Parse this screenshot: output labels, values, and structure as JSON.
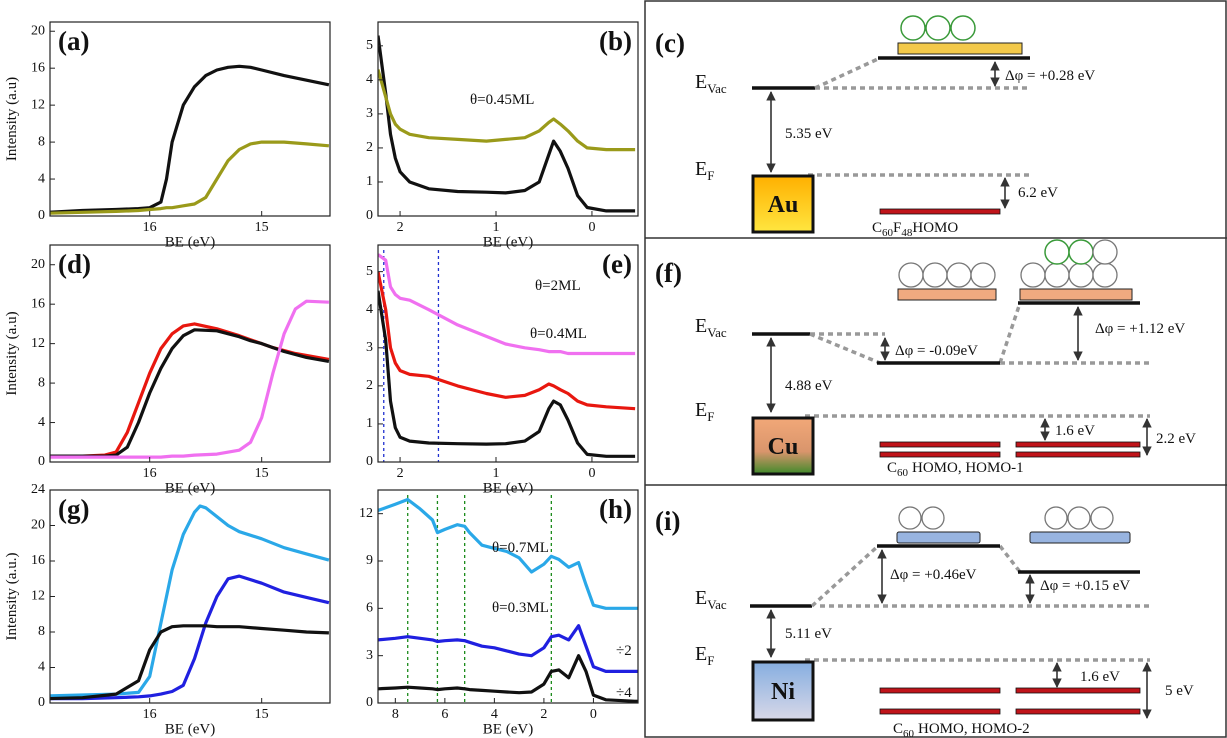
{
  "chart_data": [
    {
      "type": "line",
      "panel": "(a)",
      "xlabel": "BE (eV)",
      "ylabel": "Intensity (a.u)",
      "x": [
        16.9,
        16.6,
        16.3,
        16.1,
        16.0,
        15.9,
        15.85,
        15.8,
        15.7,
        15.6,
        15.5,
        15.4,
        15.3,
        15.2,
        15.1,
        15.0,
        14.8,
        14.6,
        14.4
      ],
      "xlim": [
        16.89,
        14.39
      ],
      "xticks": [
        16,
        15
      ],
      "ylim": [
        0,
        21
      ],
      "yticks": [
        0,
        4,
        8,
        12,
        16,
        20
      ],
      "series": [
        {
          "color": "#111111",
          "values": [
            0.4,
            0.6,
            0.7,
            0.8,
            0.9,
            1.5,
            4,
            8,
            12,
            14,
            15.2,
            15.8,
            16.1,
            16.2,
            16.1,
            15.8,
            15.2,
            14.7,
            14.2
          ]
        },
        {
          "color": "#9a9a1a",
          "values": [
            0.3,
            0.4,
            0.5,
            0.6,
            0.7,
            0.8,
            0.9,
            0.9,
            1.1,
            1.3,
            2,
            4,
            6,
            7.2,
            7.8,
            8,
            8,
            7.8,
            7.6
          ]
        }
      ],
      "annotations": []
    },
    {
      "type": "line",
      "panel": "(b)",
      "xlabel": "BE (eV)",
      "x": [
        2.23,
        2.15,
        2.1,
        2.05,
        2.0,
        1.9,
        1.7,
        1.4,
        1.1,
        0.9,
        0.7,
        0.55,
        0.45,
        0.4,
        0.33,
        0.25,
        0.15,
        0.05,
        -0.15,
        -0.45
      ],
      "xlim": [
        2.23,
        -0.48
      ],
      "xticks": [
        2,
        1,
        0
      ],
      "ylim": [
        0,
        5.7
      ],
      "yticks": [
        0,
        1,
        2,
        3,
        4,
        5
      ],
      "series": [
        {
          "color": "#111111",
          "values": [
            5.3,
            3.6,
            2.4,
            1.7,
            1.3,
            1.0,
            0.8,
            0.72,
            0.7,
            0.68,
            0.75,
            1.0,
            1.8,
            2.2,
            1.9,
            1.4,
            0.6,
            0.25,
            0.15,
            0.15
          ]
        },
        {
          "color": "#9a9a1a",
          "values": [
            4.3,
            3.5,
            3.0,
            2.7,
            2.55,
            2.4,
            2.3,
            2.25,
            2.2,
            2.25,
            2.3,
            2.5,
            2.75,
            2.85,
            2.7,
            2.5,
            2.2,
            2.0,
            1.95,
            1.95
          ]
        }
      ],
      "annotations": [
        "θ=0.45ML"
      ]
    },
    {
      "type": "line",
      "panel": "(d)",
      "xlabel": "BE (eV)",
      "ylabel": "Intensity (a.u)",
      "x": [
        16.9,
        16.6,
        16.4,
        16.3,
        16.2,
        16.1,
        16.0,
        15.9,
        15.8,
        15.7,
        15.6,
        15.4,
        15.2,
        15.1,
        15.0,
        14.9,
        14.8,
        14.7,
        14.6,
        14.4
      ],
      "xlim": [
        16.89,
        14.39
      ],
      "xticks": [
        16,
        15
      ],
      "ylim": [
        0,
        22
      ],
      "yticks": [
        0,
        4,
        8,
        12,
        16,
        20
      ],
      "series": [
        {
          "color": "#e8170f",
          "values": [
            0.6,
            0.6,
            0.7,
            1,
            3,
            6,
            9,
            11.5,
            13,
            13.8,
            14,
            13.5,
            12.8,
            12.4,
            12,
            11.6,
            11.3,
            11,
            10.8,
            10.4
          ]
        },
        {
          "color": "#111111",
          "values": [
            0.6,
            0.6,
            0.6,
            0.7,
            1.5,
            4,
            7,
            9.5,
            11.5,
            12.8,
            13.4,
            13.3,
            12.7,
            12.3,
            12,
            11.6,
            11.2,
            10.9,
            10.6,
            10.2
          ]
        },
        {
          "color": "#f070f0",
          "values": [
            0.5,
            0.5,
            0.5,
            0.5,
            0.5,
            0.5,
            0.5,
            0.5,
            0.6,
            0.6,
            0.7,
            0.8,
            1.2,
            2,
            4.5,
            9,
            13,
            15.5,
            16.3,
            16.2
          ]
        }
      ],
      "annotations": []
    },
    {
      "type": "line",
      "panel": "(e)",
      "xlabel": "BE (eV)",
      "x": [
        2.23,
        2.15,
        2.1,
        2.05,
        2.0,
        1.9,
        1.7,
        1.4,
        1.1,
        0.9,
        0.7,
        0.55,
        0.45,
        0.4,
        0.33,
        0.25,
        0.15,
        0.05,
        -0.15,
        -0.45
      ],
      "xlim": [
        2.23,
        -0.48
      ],
      "xticks": [
        2,
        1,
        0
      ],
      "ylim": [
        0,
        5.7
      ],
      "yticks": [
        0,
        1,
        2,
        3,
        4,
        5
      ],
      "vlines": [
        2.17,
        1.6
      ],
      "vline_color": "#2030d0",
      "series": [
        {
          "color": "#111111",
          "values": [
            4.5,
            3.2,
            1.6,
            0.9,
            0.65,
            0.55,
            0.5,
            0.48,
            0.47,
            0.48,
            0.55,
            0.8,
            1.4,
            1.6,
            1.5,
            1.1,
            0.5,
            0.2,
            0.15,
            0.15
          ]
        },
        {
          "color": "#e8170f",
          "values": [
            5.0,
            4.0,
            3.0,
            2.6,
            2.4,
            2.3,
            2.25,
            2.0,
            1.8,
            1.7,
            1.75,
            1.9,
            2.05,
            2.0,
            1.9,
            1.8,
            1.6,
            1.5,
            1.45,
            1.4
          ]
        },
        {
          "color": "#f070f0",
          "values": [
            5.45,
            5.3,
            4.6,
            4.4,
            4.3,
            4.25,
            4.0,
            3.6,
            3.3,
            3.1,
            3.0,
            2.95,
            2.9,
            2.9,
            2.9,
            2.85,
            2.85,
            2.85,
            2.85,
            2.85
          ]
        }
      ],
      "annotations": [
        "θ=2ML",
        "θ=0.4ML"
      ]
    },
    {
      "type": "line",
      "panel": "(g)",
      "xlabel": "BE (eV)",
      "ylabel": "Intensity (a.u.)",
      "x": [
        16.9,
        16.6,
        16.3,
        16.1,
        16.0,
        15.9,
        15.8,
        15.7,
        15.6,
        15.55,
        15.5,
        15.4,
        15.3,
        15.2,
        15.0,
        14.8,
        14.6,
        14.4
      ],
      "xlim": [
        16.89,
        14.39
      ],
      "xticks": [
        16,
        15
      ],
      "ylim": [
        0,
        24
      ],
      "yticks": [
        0,
        4,
        8,
        12,
        16,
        20,
        24
      ],
      "series": [
        {
          "color": "#2aa8e8",
          "values": [
            0.8,
            0.9,
            1.0,
            1.2,
            3,
            9,
            15,
            19,
            21.5,
            22.2,
            22,
            21,
            20,
            19.3,
            18.5,
            17.5,
            16.8,
            16.1
          ]
        },
        {
          "color": "#2020e0",
          "values": [
            0.5,
            0.5,
            0.6,
            0.7,
            0.8,
            1,
            1.3,
            2,
            5,
            7,
            9,
            12,
            14,
            14.3,
            13.5,
            12.5,
            11.9,
            11.3
          ]
        },
        {
          "color": "#111111",
          "values": [
            0.5,
            0.6,
            1,
            2.5,
            6,
            8,
            8.6,
            8.7,
            8.7,
            8.7,
            8.7,
            8.6,
            8.6,
            8.6,
            8.4,
            8.2,
            8.0,
            7.9
          ]
        }
      ],
      "annotations": []
    },
    {
      "type": "line",
      "panel": "(h)",
      "xlabel": "BE (eV)",
      "x": [
        8.7,
        8,
        7.5,
        7,
        6.5,
        6.3,
        6,
        5.5,
        5.2,
        5,
        4.5,
        4,
        3.5,
        3,
        2.5,
        2,
        1.7,
        1.4,
        1,
        0.6,
        0.3,
        0,
        -0.5,
        -1.8
      ],
      "xlim": [
        8.7,
        -1.8
      ],
      "xticks": [
        8,
        6,
        4,
        2,
        0
      ],
      "ylim": [
        0,
        13.5
      ],
      "yticks": [
        0,
        3,
        6,
        9,
        12
      ],
      "vlines": [
        7.5,
        6.3,
        5.2,
        1.7
      ],
      "vline_color": "#1a8a1a",
      "series": [
        {
          "color": "#2aa8e8",
          "values": [
            12.2,
            12.6,
            12.9,
            12.3,
            11.6,
            10.8,
            11.0,
            11.3,
            11.2,
            10.8,
            10.0,
            9.8,
            9.6,
            9.2,
            8.3,
            8.8,
            9.3,
            9.1,
            8.6,
            8.9,
            7.5,
            6.2,
            6.0,
            6.0
          ]
        },
        {
          "color": "#2020e0",
          "values": [
            4.0,
            4.1,
            4.2,
            4.1,
            4.0,
            3.9,
            3.95,
            4.0,
            3.95,
            3.85,
            3.6,
            3.5,
            3.3,
            3.1,
            3.0,
            3.5,
            4.2,
            4.3,
            4.0,
            4.9,
            3.6,
            2.3,
            2.0,
            2.0
          ]
        },
        {
          "color": "#111111",
          "values": [
            0.9,
            0.95,
            1.0,
            0.95,
            0.9,
            0.85,
            0.9,
            0.95,
            0.9,
            0.85,
            0.8,
            0.75,
            0.7,
            0.65,
            0.7,
            1.2,
            2.0,
            2.1,
            1.6,
            3.0,
            2.0,
            0.5,
            0.2,
            0.1
          ]
        }
      ],
      "annotations": [
        "θ=0.7ML",
        "θ=0.3ML",
        "÷2",
        "÷4"
      ]
    }
  ],
  "diagrams": [
    {
      "panel": "(c)",
      "evac": {
        "main": "E",
        "sub": "Vac"
      },
      "ef": {
        "main": "E",
        "sub": "F"
      },
      "metal": "Au",
      "work_function": "5.35 eV",
      "shift_labels": [
        "Δφ = +0.28 eV"
      ],
      "gap_labels": [
        "6.2 eV"
      ],
      "homo_label": [
        "C",
        "60",
        "F",
        "48",
        "HOMO"
      ]
    },
    {
      "panel": "(f)",
      "evac": {
        "main": "E",
        "sub": "Vac"
      },
      "ef": {
        "main": "E",
        "sub": "F"
      },
      "metal": "Cu",
      "work_function": "4.88 eV",
      "shift_labels": [
        "Δφ = -0.09eV",
        "Δφ = +1.12 eV"
      ],
      "gap_labels": [
        "1.6 eV",
        "2.2 eV"
      ],
      "homo_label": [
        "C",
        "60",
        "HOMO, HOMO-1"
      ]
    },
    {
      "panel": "(i)",
      "evac": {
        "main": "E",
        "sub": "Vac"
      },
      "ef": {
        "main": "E",
        "sub": "F"
      },
      "metal": "Ni",
      "work_function": "5.11 eV",
      "shift_labels": [
        "Δφ = +0.46eV",
        "Δφ = +0.15 eV"
      ],
      "gap_labels": [
        "1.6 eV",
        "5 eV"
      ],
      "homo_label": [
        "C",
        "60",
        "HOMO, HOMO-2"
      ]
    }
  ]
}
